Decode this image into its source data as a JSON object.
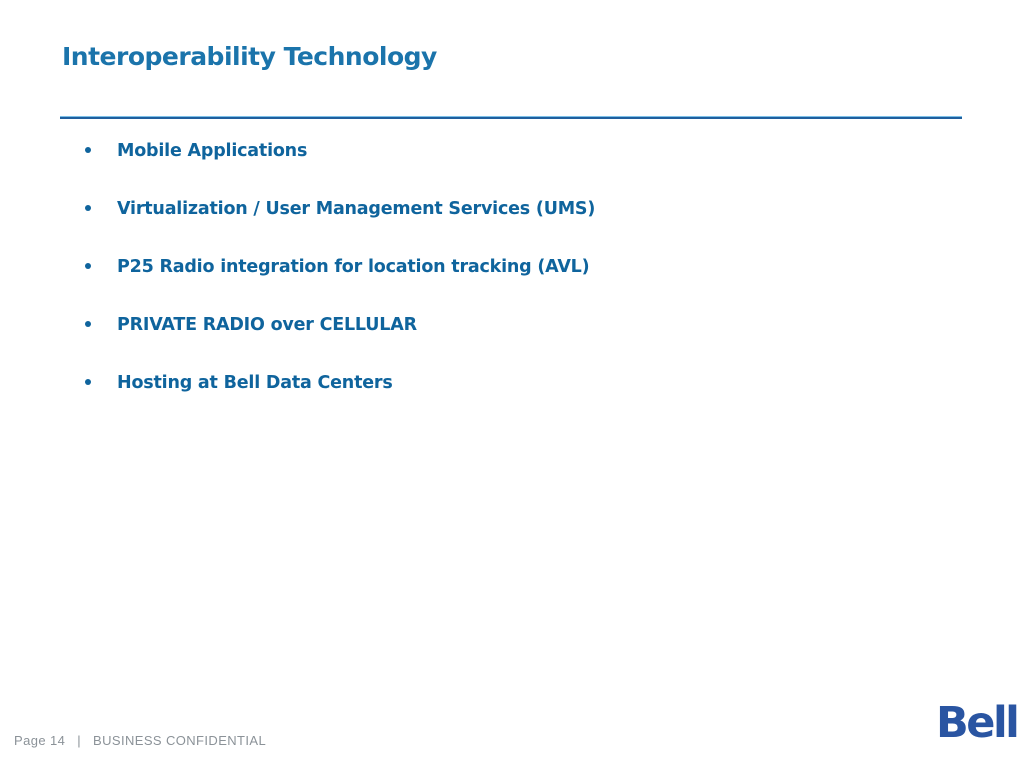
{
  "slide": {
    "title": "Interoperability Technology",
    "bullets": [
      "Mobile Applications",
      "Virtualization / User Management Services (UMS)",
      "P25 Radio integration for location tracking (AVL)",
      "PRIVATE RADIO over CELLULAR",
      "Hosting at Bell Data Centers"
    ],
    "footer": {
      "page_label": "Page 14",
      "separator": "|",
      "confidential_label": "BUSINESS CONFIDENTIAL"
    },
    "logo_text": "Bell",
    "colors": {
      "title_blue": "#1b74ab",
      "bullet_blue": "#0f649d",
      "footer_gray": "#8b9298",
      "logo_blue": "#2a55a2",
      "rule_light": "#7cc0e8",
      "rule_dark": "#1f5f9e"
    }
  }
}
